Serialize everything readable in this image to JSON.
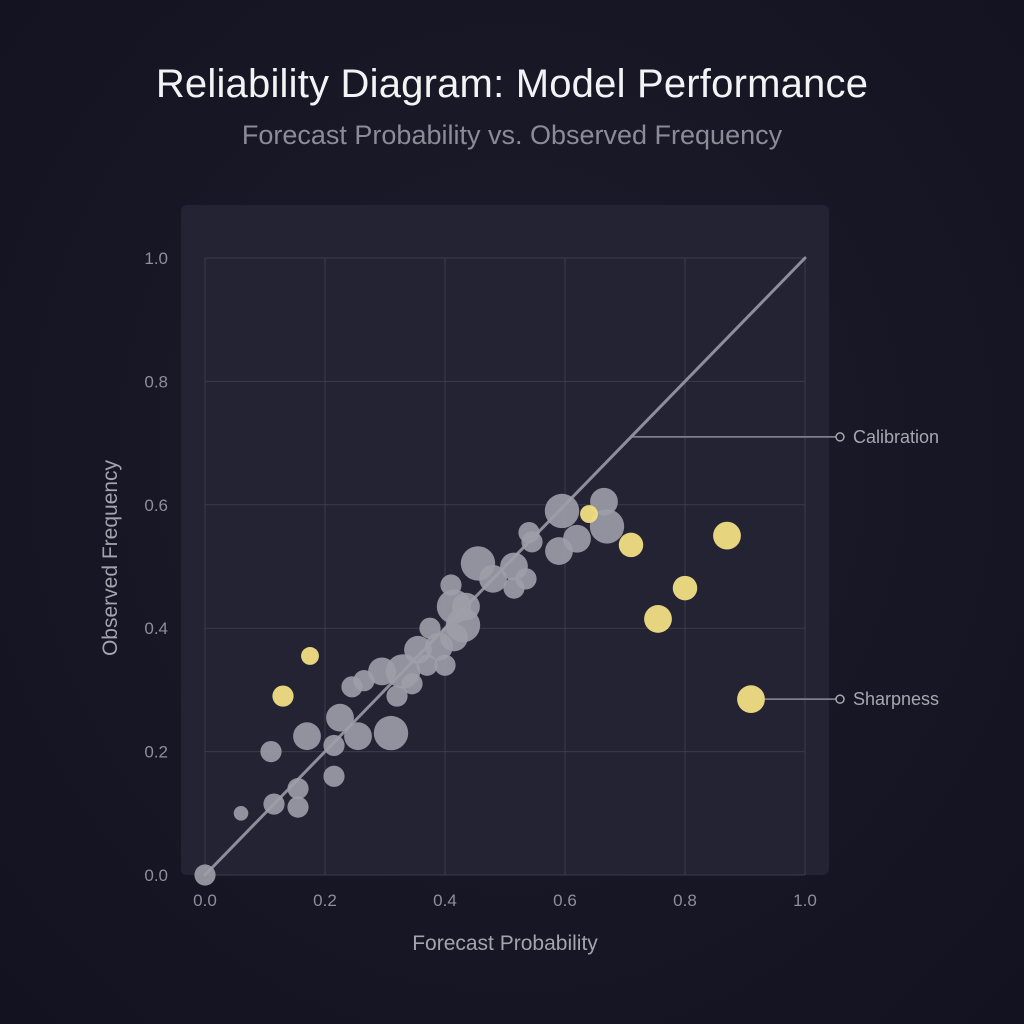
{
  "chart_data": {
    "type": "scatter",
    "title": "Reliability Diagram: Model Performance",
    "subtitle": "Forecast Probability vs. Observed Frequency",
    "xlabel": "Forecast Probability",
    "ylabel": "Observed Frequency",
    "xlim": [
      0,
      1
    ],
    "ylim": [
      0,
      1
    ],
    "x_ticks": [
      "0.0",
      "0.2",
      "0.4",
      "0.6",
      "0.8",
      "1.0"
    ],
    "y_ticks": [
      "0.0",
      "0.2",
      "0.4",
      "0.6",
      "0.8",
      "1.0"
    ],
    "grid": true,
    "diagonal": {
      "x": [
        0,
        1
      ],
      "y": [
        0,
        1
      ]
    },
    "colors": {
      "calibrated": "#9d9ea8",
      "highlight": "#f1df83",
      "diagonal": "#8d8e9a",
      "panel": "#232334",
      "grid": "#3a3b4c"
    },
    "series": [
      {
        "group": "calibrated",
        "points": [
          {
            "x": 0.0,
            "y": 0.0,
            "size": 2
          },
          {
            "x": 0.06,
            "y": 0.1,
            "size": 1
          },
          {
            "x": 0.11,
            "y": 0.2,
            "size": 2
          },
          {
            "x": 0.115,
            "y": 0.115,
            "size": 2
          },
          {
            "x": 0.155,
            "y": 0.14,
            "size": 2
          },
          {
            "x": 0.155,
            "y": 0.11,
            "size": 2
          },
          {
            "x": 0.17,
            "y": 0.225,
            "size": 3
          },
          {
            "x": 0.215,
            "y": 0.16,
            "size": 2
          },
          {
            "x": 0.215,
            "y": 0.21,
            "size": 2
          },
          {
            "x": 0.225,
            "y": 0.255,
            "size": 3
          },
          {
            "x": 0.245,
            "y": 0.305,
            "size": 2
          },
          {
            "x": 0.255,
            "y": 0.225,
            "size": 3
          },
          {
            "x": 0.265,
            "y": 0.315,
            "size": 2
          },
          {
            "x": 0.295,
            "y": 0.33,
            "size": 3
          },
          {
            "x": 0.31,
            "y": 0.23,
            "size": 4
          },
          {
            "x": 0.32,
            "y": 0.29,
            "size": 2
          },
          {
            "x": 0.33,
            "y": 0.33,
            "size": 4
          },
          {
            "x": 0.345,
            "y": 0.31,
            "size": 2
          },
          {
            "x": 0.355,
            "y": 0.365,
            "size": 3
          },
          {
            "x": 0.37,
            "y": 0.34,
            "size": 2
          },
          {
            "x": 0.375,
            "y": 0.4,
            "size": 2
          },
          {
            "x": 0.39,
            "y": 0.37,
            "size": 3
          },
          {
            "x": 0.4,
            "y": 0.34,
            "size": 2
          },
          {
            "x": 0.41,
            "y": 0.47,
            "size": 2
          },
          {
            "x": 0.415,
            "y": 0.385,
            "size": 3
          },
          {
            "x": 0.415,
            "y": 0.435,
            "size": 4
          },
          {
            "x": 0.43,
            "y": 0.405,
            "size": 4
          },
          {
            "x": 0.435,
            "y": 0.435,
            "size": 3
          },
          {
            "x": 0.455,
            "y": 0.505,
            "size": 4
          },
          {
            "x": 0.48,
            "y": 0.48,
            "size": 3
          },
          {
            "x": 0.515,
            "y": 0.465,
            "size": 2
          },
          {
            "x": 0.515,
            "y": 0.5,
            "size": 3
          },
          {
            "x": 0.535,
            "y": 0.48,
            "size": 2
          },
          {
            "x": 0.54,
            "y": 0.555,
            "size": 2
          },
          {
            "x": 0.545,
            "y": 0.54,
            "size": 2
          },
          {
            "x": 0.59,
            "y": 0.525,
            "size": 3
          },
          {
            "x": 0.595,
            "y": 0.59,
            "size": 4
          },
          {
            "x": 0.62,
            "y": 0.545,
            "size": 3
          },
          {
            "x": 0.665,
            "y": 0.605,
            "size": 3
          },
          {
            "x": 0.67,
            "y": 0.565,
            "size": 4
          }
        ]
      },
      {
        "group": "highlight",
        "points": [
          {
            "x": 0.13,
            "y": 0.29,
            "size": 2
          },
          {
            "x": 0.175,
            "y": 0.355,
            "size": 1.5
          },
          {
            "x": 0.64,
            "y": 0.585,
            "size": 1.5
          },
          {
            "x": 0.71,
            "y": 0.535,
            "size": 2.5
          },
          {
            "x": 0.755,
            "y": 0.415,
            "size": 3
          },
          {
            "x": 0.8,
            "y": 0.465,
            "size": 2.5
          },
          {
            "x": 0.87,
            "y": 0.55,
            "size": 3
          },
          {
            "x": 0.91,
            "y": 0.285,
            "size": 3
          }
        ]
      }
    ],
    "annotations": [
      {
        "text": "Calibration",
        "target": {
          "x": 0.71,
          "y": 0.71
        }
      },
      {
        "text": "Sharpness",
        "target": {
          "x": 0.91,
          "y": 0.285
        }
      }
    ]
  }
}
